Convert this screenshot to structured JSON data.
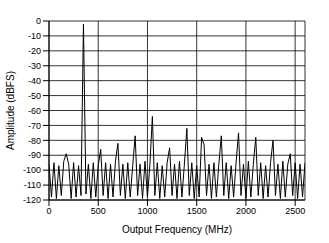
{
  "chart_data": {
    "type": "line",
    "x_label": "Output Frequency (MHz)",
    "y_label": "Amplitude (dBFS)",
    "x": [
      0,
      25,
      50,
      75,
      100,
      125,
      150,
      175,
      200,
      225,
      250,
      275,
      300,
      325,
      350,
      375,
      400,
      425,
      450,
      475,
      500,
      525,
      550,
      575,
      600,
      625,
      650,
      675,
      700,
      725,
      750,
      775,
      800,
      825,
      850,
      875,
      900,
      925,
      950,
      975,
      1000,
      1025,
      1050,
      1075,
      1100,
      1125,
      1150,
      1175,
      1200,
      1225,
      1250,
      1275,
      1300,
      1325,
      1350,
      1375,
      1400,
      1425,
      1450,
      1475,
      1500,
      1525,
      1550,
      1575,
      1600,
      1625,
      1650,
      1675,
      1700,
      1725,
      1750,
      1775,
      1800,
      1825,
      1850,
      1875,
      1900,
      1925,
      1950,
      1975,
      2000,
      2025,
      2050,
      2075,
      2100,
      2125,
      2150,
      2175,
      2200,
      2225,
      2250,
      2275,
      2300,
      2325,
      2350,
      2375,
      2400,
      2425,
      2450,
      2475,
      2500,
      2525,
      2550,
      2575,
      2600
    ],
    "values": [
      -96,
      -118,
      -95,
      -119,
      -97,
      -117,
      -94,
      -89,
      -96,
      -119,
      -95,
      -118,
      -97,
      -117,
      -2,
      -116,
      -96,
      -119,
      -95,
      -118,
      -97,
      -86,
      -117,
      -95,
      -119,
      -96,
      -118,
      -94,
      -82,
      -117,
      -96,
      -119,
      -95,
      -118,
      -97,
      -77,
      -117,
      -96,
      -119,
      -94,
      -118,
      -96,
      -64,
      -117,
      -95,
      -119,
      -97,
      -118,
      -95,
      -85,
      -117,
      -96,
      -119,
      -94,
      -118,
      -96,
      -72,
      -117,
      -95,
      -119,
      -97,
      -118,
      -78,
      -83,
      -117,
      -96,
      -119,
      -95,
      -118,
      -96,
      -77,
      -117,
      -95,
      -119,
      -97,
      -118,
      -95,
      -75,
      -117,
      -96,
      -119,
      -94,
      -118,
      -96,
      -78,
      -117,
      -95,
      -119,
      -97,
      -118,
      -95,
      -80,
      -117,
      -96,
      -119,
      -94,
      -118,
      -96,
      -89,
      -117,
      -95,
      -119,
      -96,
      -118,
      -95
    ],
    "color": "#000000",
    "xlim": [
      0,
      2600
    ],
    "xticks": [
      0,
      500,
      1000,
      1500,
      2000,
      2500
    ],
    "ylim": [
      -120,
      0
    ],
    "yticks": [
      -120,
      -110,
      -100,
      -90,
      -80,
      -70,
      -60,
      -50,
      -40,
      -30,
      -20,
      -10,
      0
    ],
    "grid": true
  }
}
